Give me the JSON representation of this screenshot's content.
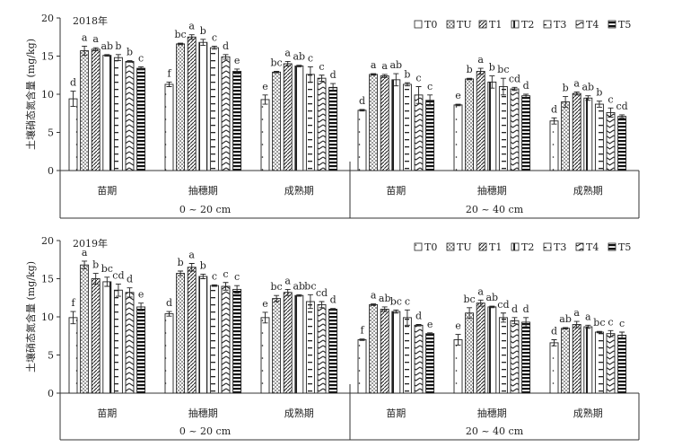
{
  "chart_data": [
    {
      "type": "bar",
      "title": "2018年",
      "ylabel": "土壤硝态氮含量 (mg/kg)",
      "ylim": [
        0,
        20
      ],
      "yticks": [
        "0",
        "5",
        "10",
        "15",
        "20"
      ],
      "legend": [
        "T0",
        "TU",
        "T1",
        "T2",
        "T3",
        "T4",
        "T5"
      ],
      "legend_position": "top-right",
      "depths": [
        "0 ~ 20 cm",
        "20 ~ 40 cm"
      ],
      "stages": [
        "苗期",
        "抽穗期",
        "成熟期",
        "苗期",
        "抽穗期",
        "成熟期"
      ],
      "groups": [
        {
          "values": [
            9.4,
            15.7,
            15.9,
            15.1,
            14.8,
            14.3,
            13.4
          ],
          "errors": [
            1.0,
            0.6,
            0.2,
            0.1,
            0.4,
            0.1,
            0.2
          ],
          "letters": [
            "d",
            "a",
            "a",
            "ab",
            "b",
            "b",
            "c"
          ]
        },
        {
          "values": [
            11.3,
            16.6,
            17.5,
            16.8,
            16.1,
            14.9,
            13.0
          ],
          "errors": [
            0.3,
            0.1,
            0.3,
            0.4,
            0.2,
            0.3,
            0.3
          ],
          "letters": [
            "f",
            "bc",
            "a",
            "b",
            "c",
            "d",
            "e"
          ]
        },
        {
          "values": [
            9.3,
            12.9,
            14.0,
            13.7,
            12.6,
            12.1,
            10.9
          ],
          "errors": [
            0.6,
            0.1,
            0.3,
            0.1,
            1.0,
            0.4,
            0.5
          ],
          "letters": [
            "e",
            "bc",
            "a",
            "ab",
            "c",
            "c",
            "d"
          ]
        },
        {
          "values": [
            7.9,
            12.6,
            12.4,
            11.9,
            11.3,
            9.9,
            9.2
          ],
          "errors": [
            0.1,
            0.1,
            0.2,
            0.8,
            0.2,
            1.1,
            0.7
          ],
          "letters": [
            "d",
            "a",
            "a",
            "ab",
            "b",
            "c",
            "c"
          ]
        },
        {
          "values": [
            8.6,
            12.0,
            13.0,
            11.6,
            11.0,
            10.7,
            9.8
          ],
          "errors": [
            0.1,
            0.1,
            0.4,
            0.8,
            1.1,
            0.2,
            0.2
          ],
          "letters": [
            "e",
            "b",
            "a",
            "b",
            "bc",
            "cd",
            "d"
          ]
        },
        {
          "values": [
            6.5,
            9.0,
            10.1,
            9.5,
            8.7,
            7.6,
            7.1
          ],
          "errors": [
            0.4,
            0.7,
            0.2,
            0.3,
            0.4,
            0.6,
            0.2
          ],
          "letters": [
            "d",
            "b",
            "a",
            "ab",
            "b",
            "c",
            "cd"
          ]
        }
      ]
    },
    {
      "type": "bar",
      "title": "2019年",
      "ylabel": "土壤硝态氮含量 (mg/kg)",
      "ylim": [
        0,
        20
      ],
      "yticks": [
        "0",
        "5",
        "10",
        "15",
        "20"
      ],
      "legend": [
        "T0",
        "TU",
        "T1",
        "T2",
        "T3",
        "T4",
        "T5"
      ],
      "legend_position": "top-right",
      "depths": [
        "0 ~ 20 cm",
        "20 ~ 40 cm"
      ],
      "stages": [
        "苗期",
        "抽穗期",
        "成熟期",
        "苗期",
        "抽穗期",
        "成熟期"
      ],
      "groups": [
        {
          "values": [
            9.9,
            16.8,
            15.0,
            14.6,
            13.5,
            13.2,
            11.3
          ],
          "errors": [
            0.8,
            0.5,
            0.7,
            0.6,
            0.8,
            0.6,
            0.5
          ],
          "letters": [
            "f",
            "a",
            "b",
            "bc",
            "cd",
            "d",
            "e"
          ]
        },
        {
          "values": [
            10.4,
            15.7,
            16.5,
            15.3,
            14.1,
            14.0,
            13.6
          ],
          "errors": [
            0.3,
            0.3,
            0.5,
            0.3,
            0.1,
            0.5,
            0.5
          ],
          "letters": [
            "d",
            "b",
            "a",
            "b",
            "c",
            "c",
            "c"
          ]
        },
        {
          "values": [
            9.9,
            12.4,
            13.2,
            12.8,
            12.0,
            11.6,
            11.0
          ],
          "errors": [
            0.7,
            0.4,
            0.4,
            0.1,
            0.9,
            0.4,
            0.1
          ],
          "letters": [
            "e",
            "bc",
            "a",
            "ab",
            "bc",
            "cd",
            "d"
          ]
        },
        {
          "values": [
            7.0,
            11.6,
            11.0,
            10.7,
            9.9,
            8.9,
            7.8
          ],
          "errors": [
            0.1,
            0.1,
            0.3,
            0.2,
            1.0,
            0.1,
            0.1
          ],
          "letters": [
            "f",
            "a",
            "ab",
            "bc",
            "c",
            "d",
            "e"
          ]
        },
        {
          "values": [
            7.0,
            10.5,
            11.8,
            11.3,
            9.9,
            9.5,
            9.3
          ],
          "errors": [
            0.7,
            0.7,
            0.4,
            0.1,
            0.6,
            0.4,
            0.6
          ],
          "letters": [
            "e",
            "bc",
            "a",
            "ab",
            "cd",
            "d",
            "d"
          ]
        },
        {
          "values": [
            6.6,
            8.5,
            9.0,
            8.7,
            8.0,
            7.8,
            7.6
          ],
          "errors": [
            0.4,
            0.1,
            0.4,
            0.2,
            0.1,
            0.4,
            0.4
          ],
          "letters": [
            "d",
            "ab",
            "a",
            "a",
            "bc",
            "c",
            "c"
          ]
        }
      ]
    }
  ]
}
